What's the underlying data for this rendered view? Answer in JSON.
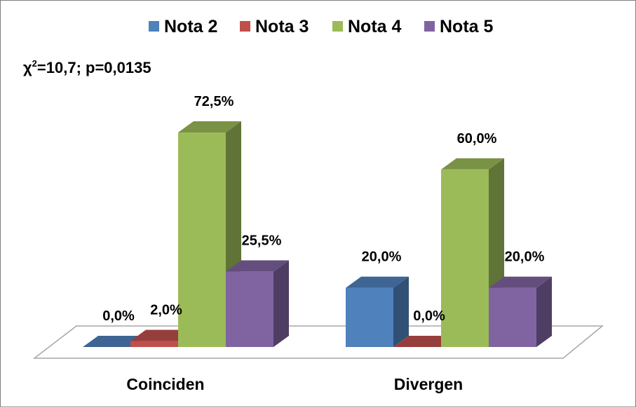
{
  "chart_data": {
    "type": "bar",
    "annotation": "χ2=10,7; p=0,0135",
    "categories": [
      "Coinciden",
      "Divergen"
    ],
    "series": [
      {
        "name": "Nota 2",
        "color": "#4f81bd",
        "values": [
          0.0,
          20.0
        ],
        "labels": [
          "0,0%",
          "20,0%"
        ]
      },
      {
        "name": "Nota 3",
        "color": "#c0504d",
        "values": [
          2.0,
          0.0
        ],
        "labels": [
          "2,0%",
          "0,0%"
        ]
      },
      {
        "name": "Nota 4",
        "color": "#9bbb59",
        "values": [
          72.5,
          60.0
        ],
        "labels": [
          "72,5%",
          "60,0%"
        ]
      },
      {
        "name": "Nota 5",
        "color": "#8064a2",
        "values": [
          25.5,
          20.0
        ],
        "labels": [
          "25,5%",
          "20,0%"
        ]
      }
    ],
    "ylim": [
      0,
      100
    ],
    "grid": false,
    "legend_position": "top",
    "style": "3d-clustered-column"
  }
}
